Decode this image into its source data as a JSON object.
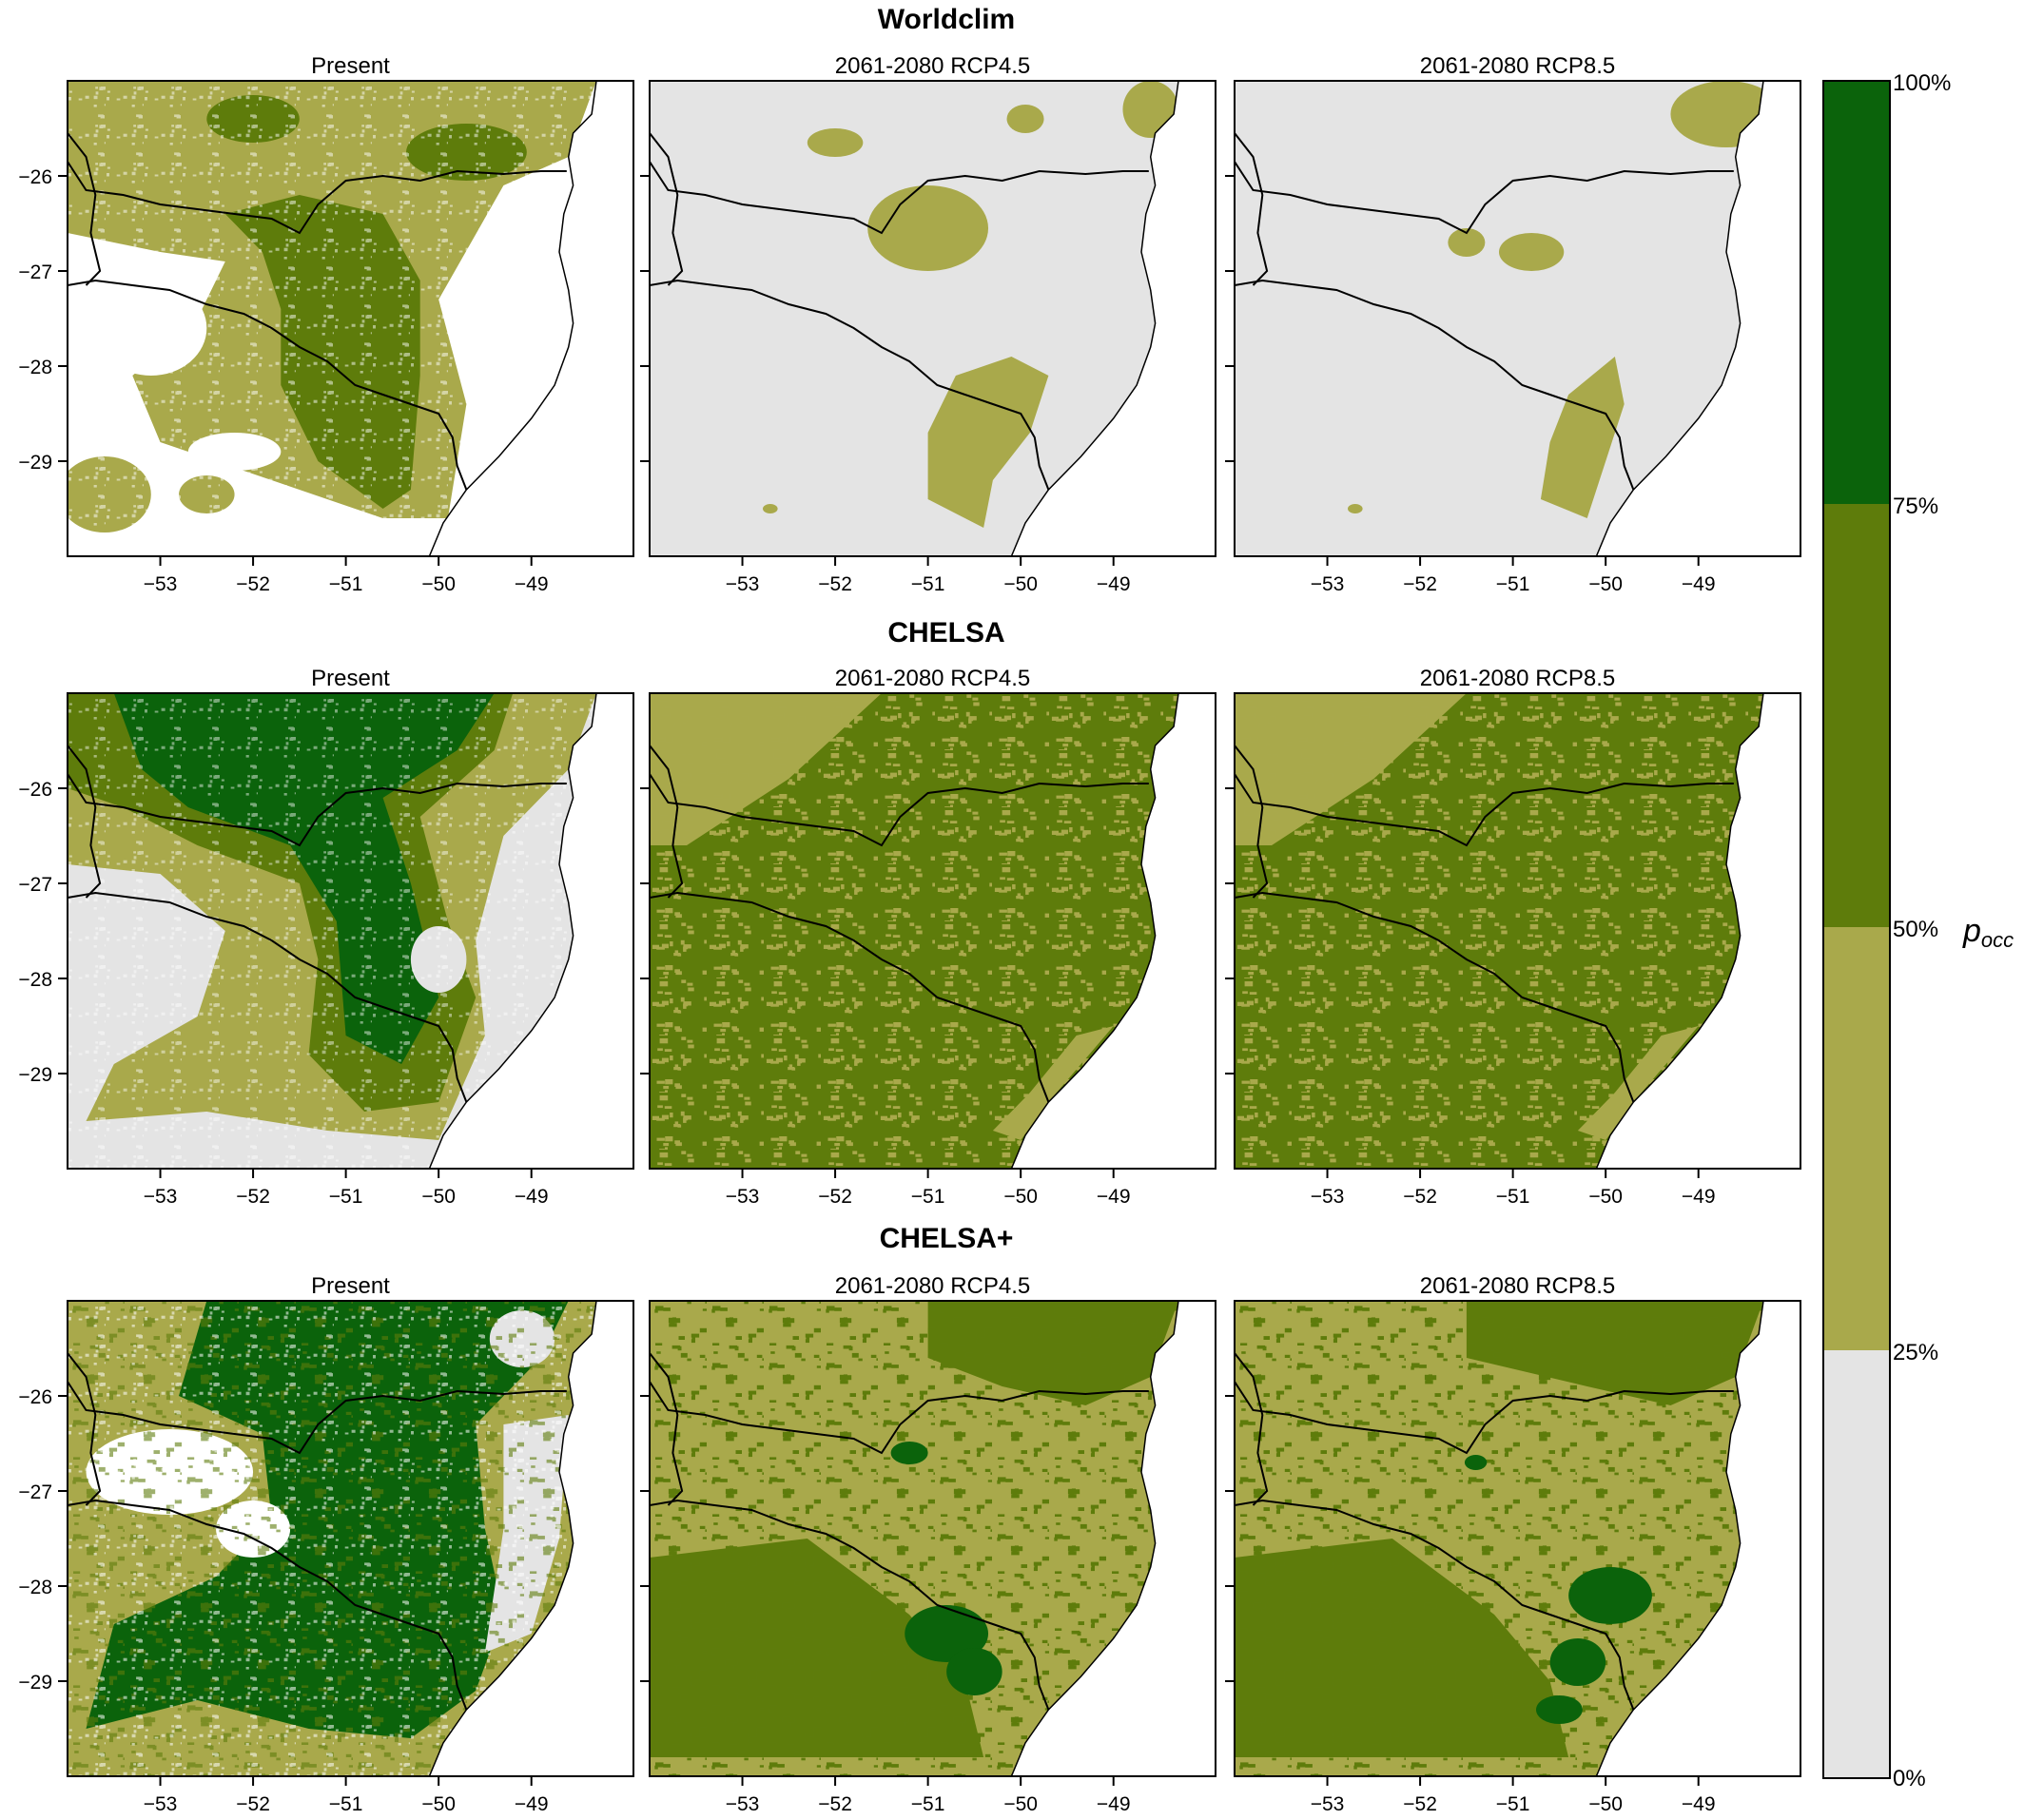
{
  "figure": {
    "rows": [
      {
        "title": "Worldclim",
        "panels": [
          {
            "title": "Present",
            "pattern": "wc_present"
          },
          {
            "title": "2061-2080 RCP4.5",
            "pattern": "wc_45"
          },
          {
            "title": "2061-2080 RCP8.5",
            "pattern": "wc_85"
          }
        ]
      },
      {
        "title": "CHELSA",
        "panels": [
          {
            "title": "Present",
            "pattern": "ch_present"
          },
          {
            "title": "2061-2080 RCP4.5",
            "pattern": "ch_future"
          },
          {
            "title": "2061-2080 RCP8.5",
            "pattern": "ch_future"
          }
        ]
      },
      {
        "title": "CHELSA+",
        "panels": [
          {
            "title": "Present",
            "pattern": "chp_present"
          },
          {
            "title": "2061-2080 RCP4.5",
            "pattern": "chp_45"
          },
          {
            "title": "2061-2080 RCP8.5",
            "pattern": "chp_85"
          }
        ]
      }
    ],
    "x_ticks": [
      -53,
      -52,
      -51,
      -50,
      -49
    ],
    "y_ticks": [
      -26,
      -27,
      -28,
      -29
    ],
    "x_tick_labels": [
      "−53",
      "−52",
      "−51",
      "−50",
      "−49"
    ],
    "y_tick_labels": [
      "−26",
      "−27",
      "−28",
      "−29"
    ],
    "x_range": [
      -54.0,
      -47.9
    ],
    "y_range": [
      -30.0,
      -25.0
    ]
  },
  "legend": {
    "labels": [
      "100%",
      "75%",
      "50%",
      "25%",
      "0%"
    ],
    "variable": "p",
    "variable_sub": "occ",
    "bins": [
      {
        "range": [
          0,
          25
        ],
        "color": "#e4e4e4"
      },
      {
        "range": [
          25,
          50
        ],
        "color": "#a9a94b"
      },
      {
        "range": [
          50,
          75
        ],
        "color": "#5e7c0b"
      },
      {
        "range": [
          75,
          100
        ],
        "color": "#0b630b"
      }
    ]
  },
  "colors": {
    "sea": "#ffffff",
    "class_0_25": "#e4e4e4",
    "class_25_50": "#a9a94b",
    "class_50_75": "#5e7c0b",
    "class_75_100": "#0b630b",
    "border": "#000000"
  }
}
